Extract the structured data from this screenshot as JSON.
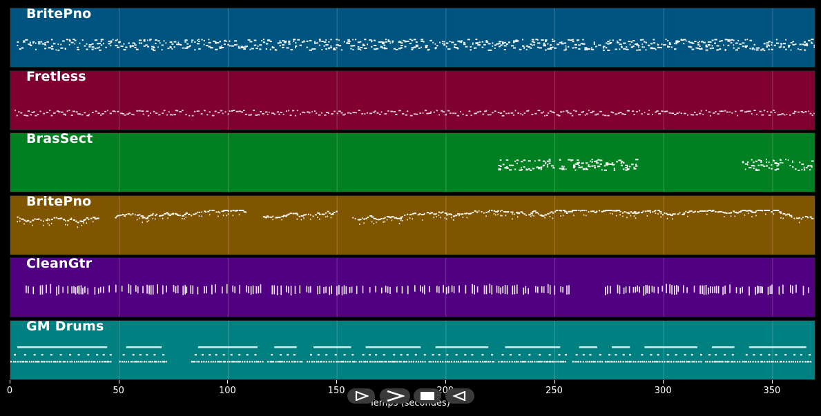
{
  "tracks": [
    {
      "name": "BritePno",
      "color": "#005580",
      "density": "dense",
      "segments": [
        [
          3,
          258
        ],
        [
          259,
          270
        ],
        [
          272,
          370
        ]
      ],
      "pattern": "chords"
    },
    {
      "name": "Fretless",
      "color": "#800030",
      "density": "sparse-line",
      "segments": [
        [
          2,
          370
        ]
      ],
      "pattern": "line"
    },
    {
      "name": "BrasSect",
      "color": "#008020",
      "density": "blocks",
      "segments": [
        [
          224,
          250
        ],
        [
          252,
          288
        ],
        [
          336,
          368
        ]
      ],
      "pattern": "chords"
    },
    {
      "name": "BritePno",
      "color": "#805500",
      "density": "dense",
      "segments": [
        [
          3,
          40
        ],
        [
          48,
          108
        ],
        [
          116,
          150
        ],
        [
          157,
          368
        ]
      ],
      "pattern": "melody"
    },
    {
      "name": "CleanGtr",
      "color": "#500080",
      "density": "strums",
      "segments": [
        [
          7,
          116
        ],
        [
          120,
          199
        ],
        [
          200,
          257
        ],
        [
          273,
          336
        ],
        [
          339,
          368
        ]
      ],
      "pattern": "strums"
    },
    {
      "name": "GM Drums",
      "color": "#008080",
      "density": "drums",
      "segments": [
        [
          0,
          47
        ],
        [
          50,
          72
        ],
        [
          83,
          116
        ],
        [
          118,
          134
        ],
        [
          136,
          159
        ],
        [
          160,
          191
        ],
        [
          192,
          222
        ],
        [
          224,
          255
        ],
        [
          258,
          272
        ],
        [
          273,
          287
        ],
        [
          288,
          318
        ],
        [
          319,
          335
        ],
        [
          336,
          368
        ]
      ],
      "pattern": "drums"
    }
  ],
  "axis": {
    "ticks": [
      "0",
      "50",
      "100",
      "150",
      "200",
      "250",
      "300",
      "350"
    ],
    "tick_values": [
      0,
      50,
      100,
      150,
      200,
      250,
      300,
      350
    ],
    "xmax": 370,
    "label": "Temps (secondes)"
  },
  "controls": [
    {
      "name": "rewind-button",
      "icon": "rewind-icon"
    },
    {
      "name": "play-button",
      "icon": "play-icon"
    },
    {
      "name": "stop-button",
      "icon": "stop-icon"
    },
    {
      "name": "forward-button",
      "icon": "forward-icon"
    }
  ]
}
